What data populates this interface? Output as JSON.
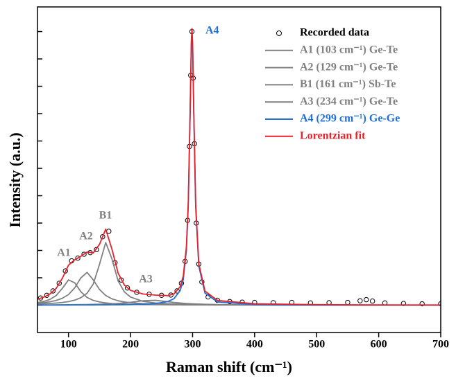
{
  "chart_data": {
    "type": "spectrum",
    "x_label": "Raman shift (cm⁻¹)",
    "y_label": "Intensity (a.u.)",
    "xlim": [
      50,
      700
    ],
    "xticks": [
      100,
      200,
      300,
      400,
      500,
      600,
      700
    ],
    "ylim": [
      -1,
      10.9
    ],
    "yticks": [
      0,
      1,
      2,
      3,
      4,
      5,
      6,
      7,
      8,
      9,
      10
    ],
    "ytick_labels": false,
    "legend": "upper right",
    "x": [
      50,
      60,
      70,
      80,
      90,
      100,
      110,
      120,
      130,
      140,
      150,
      160,
      170,
      180,
      190,
      200,
      220,
      240,
      260,
      270,
      280,
      285,
      290,
      293,
      296,
      298,
      299,
      300,
      302,
      305,
      310,
      320,
      340,
      400,
      500,
      600,
      700
    ],
    "series": [
      {
        "name": "Recorded data",
        "kind": "scatter",
        "color": "#000000",
        "x": [
          55,
          65,
          75,
          85,
          95,
          105,
          115,
          125,
          135,
          145,
          155,
          165,
          175,
          185,
          195,
          210,
          230,
          250,
          265,
          275,
          282,
          288,
          292,
          295,
          297,
          299,
          301,
          303,
          306,
          310,
          315,
          325,
          340,
          360,
          380,
          400,
          430,
          460,
          490,
          520,
          550,
          570,
          580,
          590,
          610,
          640,
          670,
          700
        ],
        "values": [
          0.26,
          0.36,
          0.52,
          0.8,
          1.25,
          1.62,
          1.72,
          1.86,
          1.92,
          2.03,
          2.5,
          2.7,
          1.55,
          0.92,
          0.63,
          0.47,
          0.4,
          0.36,
          0.37,
          0.52,
          0.8,
          1.6,
          3.1,
          5.8,
          8.4,
          10.0,
          8.3,
          5.9,
          3.0,
          1.5,
          0.85,
          0.3,
          0.18,
          0.13,
          0.11,
          0.1,
          0.09,
          0.1,
          0.08,
          0.09,
          0.1,
          0.16,
          0.2,
          0.15,
          0.08,
          0.06,
          0.05,
          0.05
        ]
      },
      {
        "name": "A1 (103 cm⁻¹) Ge-Te",
        "kind": "line",
        "color": "#808080",
        "values": [
          0.093,
          0.135,
          0.208,
          0.348,
          0.612,
          0.923,
          0.819,
          0.489,
          0.281,
          0.174,
          0.116,
          0.082,
          0.061,
          0.047,
          0.037,
          0.03,
          0.021,
          0.015,
          0.012,
          0.01,
          0.009,
          0.008,
          0.008,
          0.008,
          0.008,
          0.008,
          0.008,
          0.008,
          0.007,
          0.007,
          0.007,
          0.006,
          0.005,
          0.003,
          0.002,
          0.001,
          0.001
        ]
      },
      {
        "name": "A2 (129 cm⁻¹) Ge-Te",
        "kind": "line",
        "color": "#808080",
        "values": [
          0.072,
          0.093,
          0.124,
          0.171,
          0.25,
          0.387,
          0.632,
          1.0,
          1.197,
          0.923,
          0.571,
          0.353,
          0.231,
          0.16,
          0.117,
          0.088,
          0.055,
          0.038,
          0.027,
          0.024,
          0.021,
          0.02,
          0.019,
          0.019,
          0.018,
          0.018,
          0.018,
          0.018,
          0.018,
          0.017,
          0.016,
          0.015,
          0.012,
          0.007,
          0.003,
          0.002,
          0.001
        ]
      },
      {
        "name": "B1 (161 cm⁻¹) Sb-Te",
        "kind": "line",
        "color": "#808080",
        "values": [
          0.041,
          0.05,
          0.061,
          0.076,
          0.098,
          0.131,
          0.183,
          0.272,
          0.436,
          0.777,
          1.495,
          2.29,
          1.691,
          0.884,
          0.485,
          0.296,
          0.139,
          0.08,
          0.052,
          0.043,
          0.036,
          0.033,
          0.031,
          0.03,
          0.028,
          0.028,
          0.028,
          0.027,
          0.026,
          0.025,
          0.024,
          0.02,
          0.016,
          0.009,
          0.004,
          0.003,
          0.002
        ]
      },
      {
        "name": "A3 (234 cm⁻¹) Ge-Te",
        "kind": "line",
        "color": "#808080",
        "values": [
          0.008,
          0.009,
          0.01,
          0.011,
          0.013,
          0.015,
          0.017,
          0.02,
          0.023,
          0.028,
          0.033,
          0.041,
          0.051,
          0.064,
          0.081,
          0.105,
          0.161,
          0.176,
          0.127,
          0.099,
          0.078,
          0.068,
          0.061,
          0.057,
          0.053,
          0.051,
          0.05,
          0.048,
          0.046,
          0.043,
          0.039,
          0.032,
          0.022,
          0.01,
          0.004,
          0.002,
          0.001
        ]
      },
      {
        "name": "A4 (299 cm⁻¹) Ge-Ge",
        "kind": "line",
        "color": "#1f6fd6",
        "values": [
          0.003,
          0.004,
          0.004,
          0.004,
          0.005,
          0.005,
          0.006,
          0.006,
          0.007,
          0.008,
          0.009,
          0.01,
          0.012,
          0.014,
          0.017,
          0.021,
          0.032,
          0.058,
          0.131,
          0.235,
          0.532,
          0.936,
          2.0,
          3.6,
          6.92,
          9.53,
          10.0,
          9.53,
          6.92,
          3.6,
          1.433,
          0.439,
          0.119,
          0.02,
          0.005,
          0.002,
          0.001
        ]
      },
      {
        "name": "Lorentzian fit",
        "kind": "line",
        "color": "#e8202a",
        "values": [
          0.217,
          0.291,
          0.407,
          0.61,
          0.978,
          1.461,
          1.657,
          1.787,
          1.944,
          1.91,
          2.224,
          2.776,
          2.046,
          1.169,
          0.737,
          0.54,
          0.408,
          0.367,
          0.349,
          0.411,
          0.676,
          1.065,
          2.119,
          3.714,
          7.027,
          9.635,
          10.104,
          9.631,
          7.018,
          3.693,
          1.519,
          0.512,
          0.174,
          0.049,
          0.018,
          0.01,
          0.006
        ]
      }
    ],
    "annotations": [
      {
        "text": "A1",
        "color": "#808080"
      },
      {
        "text": "A2",
        "color": "#808080"
      },
      {
        "text": "B1",
        "color": "#808080"
      },
      {
        "text": "A3",
        "color": "#808080"
      },
      {
        "text": "A4",
        "color": "#1f6fd6"
      }
    ]
  }
}
